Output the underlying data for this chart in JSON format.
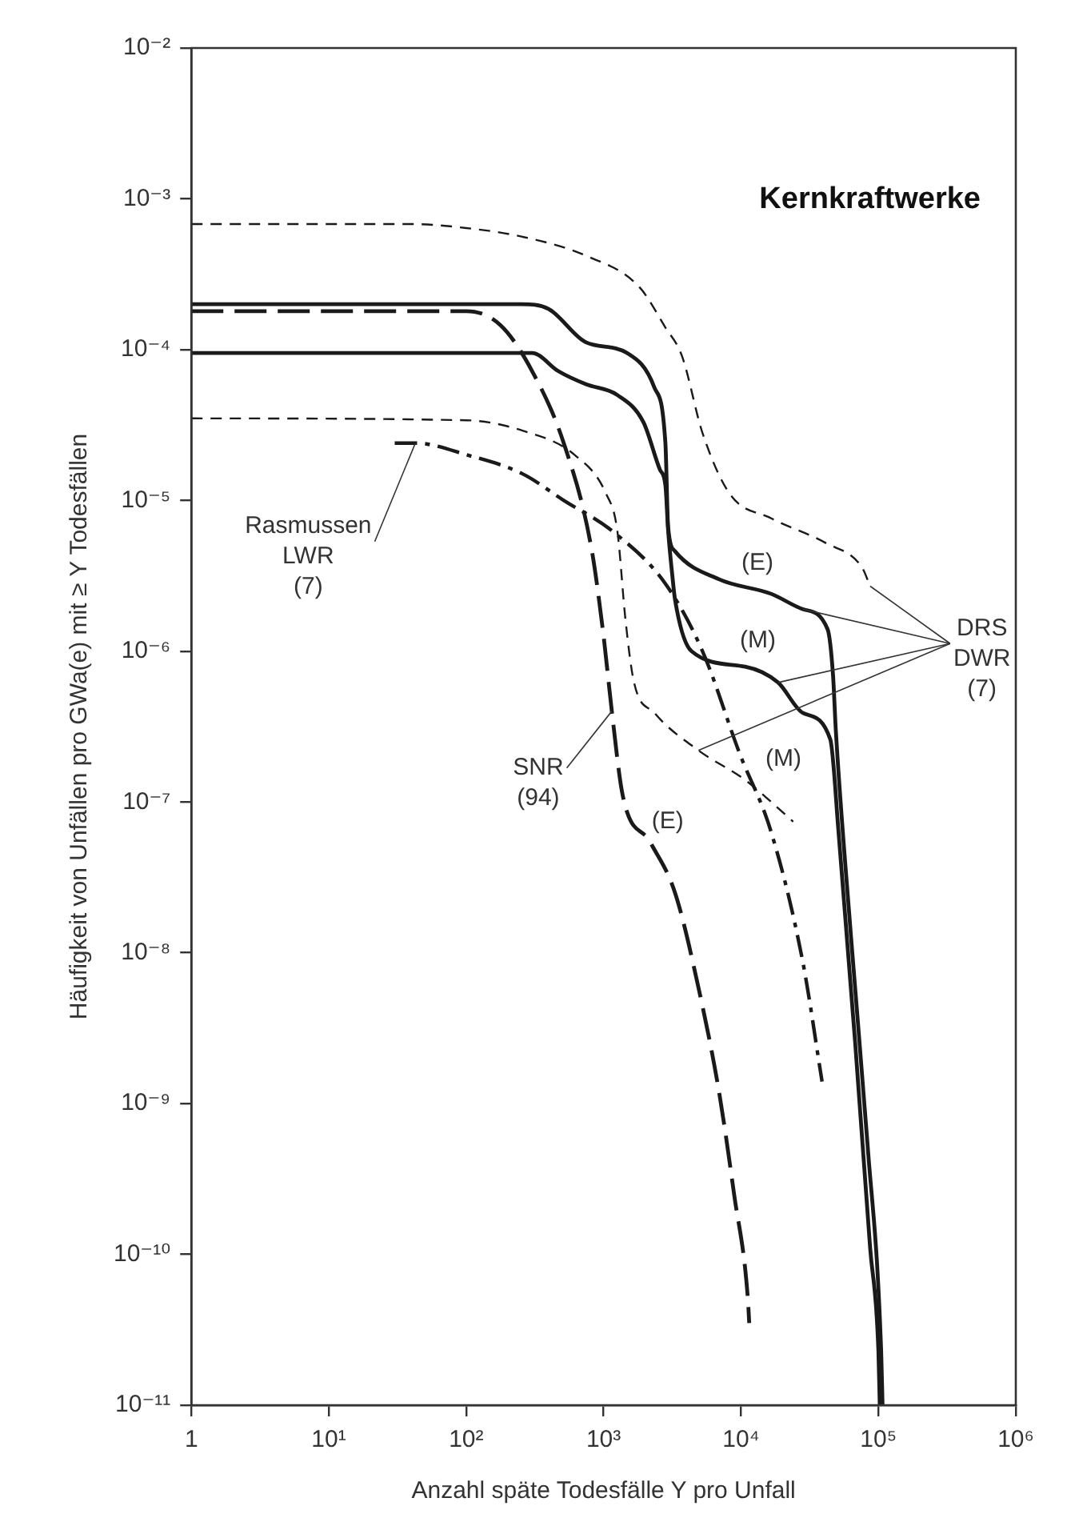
{
  "chart_data": {
    "type": "line",
    "title": "Kernkraftwerke",
    "xlabel": "Anzahl späte Todesfälle Y pro Unfall",
    "ylabel": "Häufigkeit von Unfällen pro GWa(e) mit ≥ Y Todesfällen",
    "log": "xy",
    "grid": false,
    "legend": false,
    "marker": "none",
    "xlim": [
      1,
      1000000
    ],
    "ylim": [
      1e-11,
      0.01
    ],
    "xticks": [
      1,
      {
        "value": 10,
        "label": "10¹"
      },
      {
        "value": 100,
        "label": "10²"
      },
      {
        "value": 1000,
        "label": "10³"
      },
      {
        "value": 10000,
        "label": "10⁴"
      },
      {
        "value": 100000,
        "label": "10⁵"
      },
      {
        "value": 1000000,
        "label": "10⁶"
      }
    ],
    "yticks": [
      {
        "value": 1e-11,
        "label": "10⁻¹¹"
      },
      {
        "value": 1e-10,
        "label": "10⁻¹⁰"
      },
      {
        "value": 1e-09,
        "label": "10⁻⁹"
      },
      {
        "value": 1e-08,
        "label": "10⁻⁸"
      },
      {
        "value": 1e-07,
        "label": "10⁻⁷"
      },
      {
        "value": 1e-06,
        "label": "10⁻⁶"
      },
      {
        "value": 1e-05,
        "label": "10⁻⁵"
      },
      {
        "value": 0.0001,
        "label": "10⁻⁴"
      },
      {
        "value": 0.001,
        "label": "10⁻³"
      },
      {
        "value": 0.01,
        "label": "10⁻²"
      }
    ],
    "series": [
      {
        "color": "#1a1a1a",
        "line_style": "solid",
        "x": [
          1,
          251,
          398,
          741,
          1479,
          2344,
          2818,
          2951,
          3311,
          6918,
          16600,
          28180,
          42660,
          46770,
          48980,
          63100,
          83180,
          104700,
          107200
        ],
        "values": [
          0.0002,
          0.0002,
          0.000186,
          0.000112,
          9.5e-05,
          5.6e-05,
          2.4e-05,
          6.6e-06,
          4.6e-06,
          3e-06,
          2.4e-06,
          1.9e-06,
          1.4e-06,
          6.9e-07,
          3e-07,
          1.3e-08,
          5.5e-10,
          2.3e-11,
          1e-11
        ]
      },
      {
        "color": "#1a1a1a",
        "line_style": "solid",
        "x": [
          1,
          302,
          468,
          741,
          1259,
          1950,
          2570,
          2818,
          2951,
          3162,
          3311,
          4365,
          10720,
          18620,
          28180,
          44670,
          51290,
          67610,
          87100,
          100000,
          102300
        ],
        "values": [
          9.5e-05,
          9.5e-05,
          7.2e-05,
          5.9e-05,
          5e-05,
          3.3e-05,
          1.6e-05,
          1.26e-05,
          6.3e-06,
          3.2e-06,
          2.2e-06,
          1e-06,
          7.9e-07,
          6.2e-07,
          3.9e-07,
          2.6e-07,
          6.3e-08,
          2.6e-09,
          1.1e-10,
          2.3e-11,
          1e-11
        ]
      },
      {
        "color": "#1a1a1a",
        "line_style": "dashed",
        "x": [
          1,
          39.8,
          100,
          257,
          741,
          1820,
          2818,
          3715,
          5248,
          8318,
          16600,
          41690,
          75860,
          87100
        ],
        "values": [
          0.00068,
          0.00068,
          0.00064,
          0.00056,
          0.00042,
          0.00026,
          0.00014,
          9.1e-05,
          2.8e-05,
          1.1e-05,
          7.6e-06,
          5.2e-06,
          3.6e-06,
          2.7e-06
        ]
      },
      {
        "color": "#1a1a1a",
        "line_style": "dashed",
        "x": [
          1,
          100,
          257,
          617,
          1047,
          1259,
          1445,
          1660,
          2344,
          4898,
          10720,
          16600,
          23990
        ],
        "values": [
          3.5e-05,
          3.4e-05,
          2.9e-05,
          2e-05,
          1.1e-05,
          6.3e-06,
          1.6e-06,
          6.3e-07,
          3.9e-07,
          2.2e-07,
          1.4e-07,
          1e-07,
          7.4e-08
        ]
      },
      {
        "color": "#1a1a1a",
        "line_style": "dashdot",
        "x": [
          30.2,
          42.7,
          102,
          257,
          513,
          1148,
          2818,
          5248,
          9772,
          16600,
          28180,
          38900
        ],
        "values": [
          2.4e-05,
          2.4e-05,
          2e-05,
          1.5e-05,
          1e-05,
          6.3e-06,
          2.8e-06,
          1e-06,
          2.1e-07,
          6.3e-08,
          8.7e-09,
          1.4e-09
        ]
      },
      {
        "color": "#1a1a1a",
        "line_style": "longdash",
        "x": [
          1,
          100,
          178,
          302,
          513,
          813,
          1000,
          1148,
          1380,
          2188,
          3311,
          4898,
          6918,
          8913,
          11220,
          11480
        ],
        "values": [
          0.00018,
          0.00018,
          0.000145,
          7.2e-05,
          2.4e-05,
          4.9e-06,
          1.26e-06,
          4e-07,
          1.1e-07,
          5.4e-08,
          2.5e-08,
          5.9e-09,
          1.2e-09,
          2.5e-10,
          5.1e-11,
          3.5e-11
        ]
      }
    ],
    "annotations": [
      {
        "text": "Rasmussen\nLWR\n(7)",
        "x": 42.7,
        "y": 2.4e-05
      },
      {
        "text": "SNR\n(94)",
        "x": 1148,
        "y": 4e-07
      },
      {
        "text": "DRS\nDWR\n(7)",
        "x": 28180,
        "y": 1.9e-06
      },
      "(E)",
      "(M)",
      "(M)",
      "(E)"
    ]
  }
}
